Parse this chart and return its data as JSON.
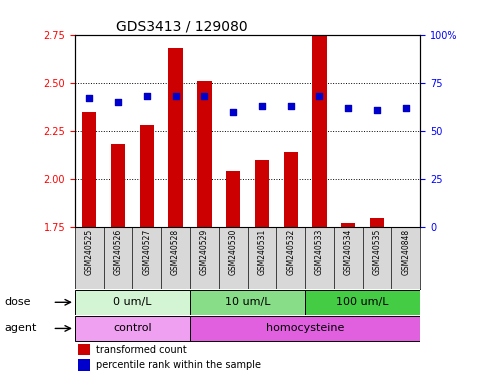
{
  "title": "GDS3413 / 129080",
  "samples": [
    "GSM240525",
    "GSM240526",
    "GSM240527",
    "GSM240528",
    "GSM240529",
    "GSM240530",
    "GSM240531",
    "GSM240532",
    "GSM240533",
    "GSM240534",
    "GSM240535",
    "GSM240848"
  ],
  "red_values": [
    2.35,
    2.18,
    2.28,
    2.68,
    2.51,
    2.04,
    2.1,
    2.14,
    2.8,
    1.77,
    1.8,
    1.74
  ],
  "blue_values": [
    67,
    65,
    68,
    68,
    68,
    60,
    63,
    63,
    68,
    62,
    61,
    62
  ],
  "dose_groups": [
    {
      "label": "0 um/L",
      "start": 0,
      "end": 4,
      "color": "#d4f5d4"
    },
    {
      "label": "10 um/L",
      "start": 4,
      "end": 8,
      "color": "#88dd88"
    },
    {
      "label": "100 um/L",
      "start": 8,
      "end": 12,
      "color": "#44cc44"
    }
  ],
  "agent_groups": [
    {
      "label": "control",
      "start": 0,
      "end": 4,
      "color": "#f0a0f0"
    },
    {
      "label": "homocysteine",
      "start": 4,
      "end": 12,
      "color": "#e060e0"
    }
  ],
  "ylim_left": [
    1.75,
    2.75
  ],
  "ylim_right": [
    0,
    100
  ],
  "yticks_left": [
    1.75,
    2.0,
    2.25,
    2.5,
    2.75
  ],
  "yticks_right": [
    0,
    25,
    50,
    75,
    100
  ],
  "bar_color": "#cc0000",
  "dot_color": "#0000cc",
  "bar_width": 0.5,
  "xticklabel_bg": "#d8d8d8",
  "title_fontsize": 10,
  "tick_fontsize": 7,
  "label_fontsize": 8,
  "annot_fontsize": 8
}
